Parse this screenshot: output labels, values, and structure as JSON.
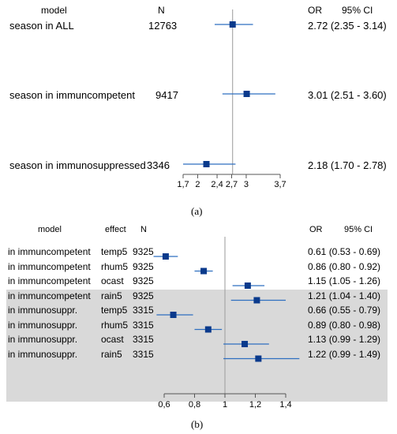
{
  "chart_data": [
    {
      "type": "forest",
      "caption": "(a)",
      "headers": {
        "model": "model",
        "n": "N",
        "or": "OR",
        "ci": "95% CI"
      },
      "rows": [
        {
          "label": "season in ALL",
          "n": "12763",
          "or": 2.72,
          "lower": 2.35,
          "upper": 3.14,
          "text": "2.72 (2.35 - 3.14)"
        },
        {
          "label": "season in immuncompetent",
          "n": "9417",
          "or": 3.01,
          "lower": 2.51,
          "upper": 3.6,
          "text": "3.01 (2.51 - 3.60)"
        },
        {
          "label": "season in immunosuppressed",
          "n": "3346",
          "or": 2.18,
          "lower": 1.7,
          "upper": 2.78,
          "text": "2.18 (1.70 - 2.78)"
        }
      ],
      "reference_line": 2.72,
      "x_ticks": [
        1.7,
        2,
        2.4,
        2.7,
        3,
        3.7
      ],
      "x_tick_labels": [
        "1,7",
        "2",
        "2,4",
        "2,7",
        "3",
        "3,7"
      ],
      "xlim": [
        1.7,
        3.7
      ],
      "marker_color": "#0a3a8c",
      "line_color": "#2f6fc0"
    },
    {
      "type": "forest",
      "caption": "(b)",
      "headers": {
        "model": "model",
        "effect": "effect",
        "n": "N",
        "or": "OR",
        "ci": "95% CI"
      },
      "rows": [
        {
          "label": "in immuncompetent",
          "effect": "temp5",
          "n": "9325",
          "or": 0.61,
          "lower": 0.53,
          "upper": 0.69,
          "text": "0.61 (0.53 - 0.69)",
          "shaded": false
        },
        {
          "label": "in immuncompetent",
          "effect": "rhum5",
          "n": "9325",
          "or": 0.86,
          "lower": 0.8,
          "upper": 0.92,
          "text": "0.86 (0.80 - 0.92)",
          "shaded": false
        },
        {
          "label": "in immuncompetent",
          "effect": "ocast",
          "n": "9325",
          "or": 1.15,
          "lower": 1.05,
          "upper": 1.26,
          "text": "1.15 (1.05 - 1.26)",
          "shaded": false
        },
        {
          "label": "in immuncompetent",
          "effect": "rain5",
          "n": "9325",
          "or": 1.21,
          "lower": 1.04,
          "upper": 1.4,
          "text": "1.21 (1.04 - 1.40)",
          "shaded": false
        },
        {
          "label": "in immunosuppr.",
          "effect": "temp5",
          "n": "3315",
          "or": 0.66,
          "lower": 0.55,
          "upper": 0.79,
          "text": "0.66 (0.55 - 0.79)",
          "shaded": true
        },
        {
          "label": "in immunosuppr.",
          "effect": "rhum5",
          "n": "3315",
          "or": 0.89,
          "lower": 0.8,
          "upper": 0.98,
          "text": "0.89 (0.80 - 0.98)",
          "shaded": true
        },
        {
          "label": "in immunosuppr.",
          "effect": "ocast",
          "n": "3315",
          "or": 1.13,
          "lower": 0.99,
          "upper": 1.29,
          "text": "1.13 (0.99 - 1.29)",
          "shaded": true
        },
        {
          "label": "in immunosuppr.",
          "effect": "rain5",
          "n": "3315",
          "or": 1.22,
          "lower": 0.99,
          "upper": 1.49,
          "text": "1.22 (0.99 - 1.49)",
          "shaded": true
        }
      ],
      "reference_line": 1.0,
      "x_ticks": [
        0.6,
        0.8,
        1,
        1.2,
        1.4
      ],
      "x_tick_labels": [
        "0,6",
        "0,8",
        "1",
        "1,2",
        "1,4"
      ],
      "xlim": [
        0.6,
        1.4
      ],
      "marker_color": "#0a3a8c",
      "line_color": "#2f6fc0",
      "shade_color": "#d9d9d9"
    }
  ]
}
